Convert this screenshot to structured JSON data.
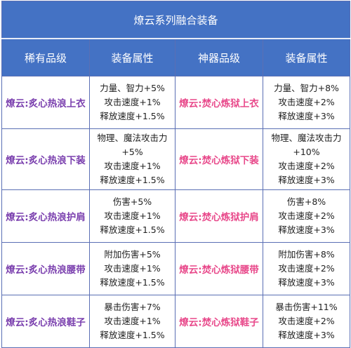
{
  "title": "燎云系列融合装备",
  "headers": [
    "稀有品级",
    "装备属性",
    "神器品级",
    "装备属性"
  ],
  "rows": [
    {
      "rare_name": "燎云:炙心热浪上衣",
      "rare_attrs": [
        "力量、智力+5%",
        "攻击速度+1%",
        "释放速度+1.5%"
      ],
      "artifact_name": "燎云:焚心炼狱上衣",
      "artifact_attrs": [
        "力量、智力+8%",
        "攻击速度+2%",
        "释放速度+3%"
      ]
    },
    {
      "rare_name": "燎云:炙心热浪下装",
      "rare_attrs": [
        "物理、魔法攻击力",
        "+5%",
        "攻击速度+1%",
        "释放速度+1.5%"
      ],
      "artifact_name": "燎云:焚心炼狱下装",
      "artifact_attrs": [
        "物理、魔法攻击力",
        "+10%",
        "攻击速度+2%",
        "释放速度+3%"
      ]
    },
    {
      "rare_name": "燎云:炙心热浪护肩",
      "rare_attrs": [
        "伤害+5%",
        "攻击速度+1%",
        "释放速度+1.5%"
      ],
      "artifact_name": "燎云:焚心炼狱护肩",
      "artifact_attrs": [
        "伤害+8%",
        "攻击速度+2%",
        "释放速度+3%"
      ]
    },
    {
      "rare_name": "燎云:炙心热浪腰带",
      "rare_attrs": [
        "附加伤害+5%",
        "攻击速度+1%",
        "释放速度+1.5%"
      ],
      "artifact_name": "燎云:焚心炼狱腰带",
      "artifact_attrs": [
        "附加伤害+8%",
        "攻击速度+2%",
        "释放速度+3%"
      ]
    },
    {
      "rare_name": "燎云:炙心热浪鞋子",
      "rare_attrs": [
        "暴击伤害+7%",
        "攻击速度+1%",
        "释放速度+1.5%"
      ],
      "artifact_name": "燎云:焚心炼狱鞋子",
      "artifact_attrs": [
        "暴击伤害+11%",
        "攻击速度+2%",
        "释放速度+3%"
      ]
    }
  ]
}
